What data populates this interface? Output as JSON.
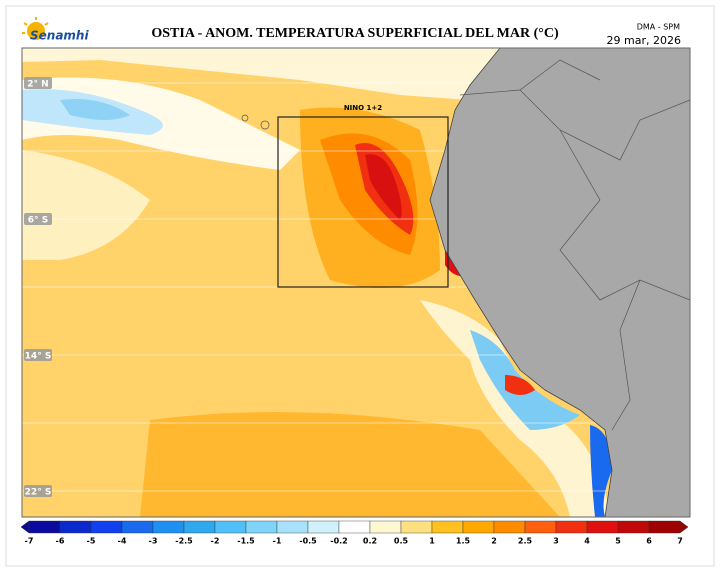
{
  "header": {
    "logo": "Senamhi",
    "title": "OSTIA - ANOM. TEMPERATURA SUPERFICIAL DEL MAR (°C)",
    "agency": "DMA - SPM",
    "date": "29 mar, 2026"
  },
  "map": {
    "latitude_labels": [
      "2° N",
      "6° S",
      "14° S",
      "22° S"
    ],
    "region_label": "NINO 1+2"
  },
  "legend": {
    "labels": [
      -7,
      -6,
      -5,
      -4,
      -3,
      -2.5,
      -2,
      -1.5,
      -1,
      -0.5,
      -0.2,
      0.2,
      0.5,
      1,
      1.5,
      2,
      2.5,
      3,
      4,
      5,
      6,
      7
    ],
    "colors": [
      "#0a0aa0",
      "#0a2ad0",
      "#1040f0",
      "#1a6af0",
      "#2090f0",
      "#30a8f0",
      "#50c0f8",
      "#80d4f8",
      "#a8e2fa",
      "#d0f0fc",
      "#ffffff",
      "#fff8d0",
      "#ffe080",
      "#ffc020",
      "#ffa800",
      "#ff8c00",
      "#ff6010",
      "#f03010",
      "#e01010",
      "#c00808",
      "#a00000"
    ]
  }
}
